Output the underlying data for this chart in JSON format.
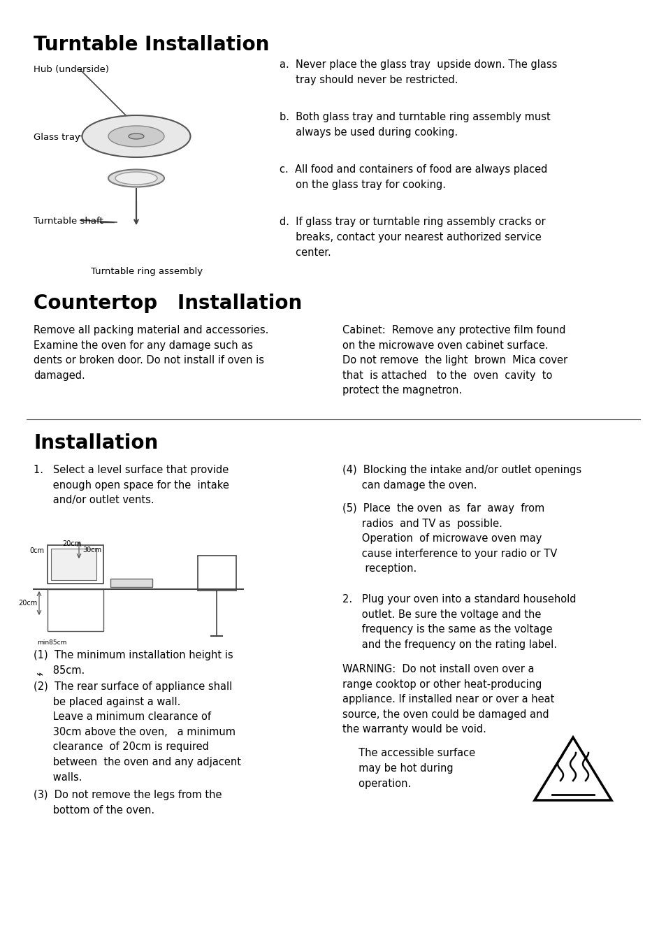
{
  "bg_color": "#ffffff",
  "title1": "Turntable Installation",
  "title2": "Countertop   Installation",
  "title3": "Installation",
  "turntable_labels": {
    "hub": "Hub (underside)",
    "glass_tray": "Glass tray",
    "turntable_shaft": "Turntable shaft",
    "ring_assembly": "Turntable ring assembly"
  },
  "turntable_instructions": [
    "a.  Never place the glass tray  upside down. The glass\n     tray should never be restricted.",
    "b.  Both glass tray and turntable ring assembly must\n     always be used during cooking.",
    "c.  All food and containers of food are always placed\n     on the glass tray for cooking.",
    "d.  If glass tray or turntable ring assembly cracks or\n     breaks, contact your nearest authorized service\n     center."
  ],
  "countertop_left": "Remove all packing material and accessories.\nExamine the oven for any damage such as\ndents or broken door. Do not install if oven is\ndamaged.",
  "countertop_right": "Cabinet:  Remove any protective film found\non the microwave oven cabinet surface.\nDo not remove  the light  brown  Mica cover\nthat  is attached   to the  oven  cavity  to\nprotect the magnetron.",
  "install_items_left": [
    "1.   Select a level surface that provide\n      enough open space for the  intake\n      and/or outlet vents.",
    "(1)  The minimum installation height is\n      85cm.",
    "(2)  The rear surface of appliance shall\n      be placed against a wall.\n      Leave a minimum clearance of\n      30cm above the oven,   a minimum\n      clearance  of 20cm is required\n      between  the oven and any adjacent\n      walls.",
    "(3)  Do not remove the legs from the\n      bottom of the oven."
  ],
  "install_items_right": [
    "(4)  Blocking the intake and/or outlet openings\n      can damage the oven.",
    "(5)  Place  the oven  as  far  away  from\n      radios  and TV as  possible.\n      Operation  of microwave oven may\n      cause interference to your radio or TV\n       reception.",
    "2.   Plug your oven into a standard household\n      outlet. Be sure the voltage and the\n      frequency is the same as the voltage\n      and the frequency on the rating label.",
    "WARNING:  Do not install oven over a\nrange cooktop or other heat-producing\nappliance. If installed near or over a heat\nsource, the oven could be damaged and\nthe warranty would be void.",
    "     The accessible surface\n     may be hot during\n     operation."
  ]
}
